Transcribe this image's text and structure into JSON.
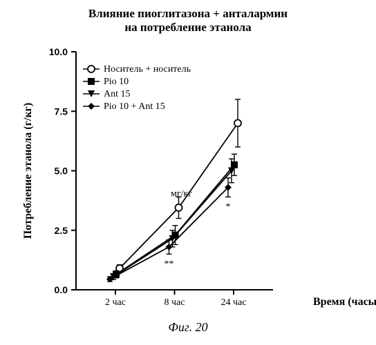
{
  "title_line1": "Влияние пиоглитазона + анталармин",
  "title_line2": "на потребление этанола",
  "ylabel": "Потребление этанола (г/кг)",
  "xlabel": "Время (часы)",
  "unit_label": "мг/кг",
  "fig_caption": "Фиг. 20",
  "chart": {
    "type": "line",
    "background_color": "#ffffff",
    "axis_color": "#000000",
    "line_width": 1.8,
    "ylim": [
      0,
      10
    ],
    "yticks": [
      0.0,
      2.5,
      5.0,
      7.5,
      10.0
    ],
    "ytick_labels": [
      "0.0",
      "2.5",
      "5.0",
      "7.5",
      "10.0"
    ],
    "xticks": [
      2,
      8,
      24
    ],
    "xtick_labels": [
      "2 час",
      "8 час",
      "24 час"
    ],
    "x_positions": [
      0,
      1,
      2
    ],
    "legend": {
      "items": [
        {
          "label": "Носитель + носитель",
          "marker": "circle-open",
          "color": "#000000"
        },
        {
          "label": "Pio 10",
          "marker": "square-filled",
          "color": "#000000"
        },
        {
          "label": "Ant 15",
          "marker": "triangle-down-filled",
          "color": "#000000"
        },
        {
          "label": "Pio 10 + Ant 15",
          "marker": "diamond-filled",
          "color": "#000000"
        }
      ]
    },
    "series": [
      {
        "name": "Носитель + носитель",
        "marker": "circle-open",
        "color": "#000000",
        "values": [
          0.9,
          3.45,
          7.0
        ],
        "err": [
          0.15,
          0.45,
          1.0
        ]
      },
      {
        "name": "Pio 10",
        "marker": "square-filled",
        "color": "#000000",
        "values": [
          0.65,
          2.3,
          5.25
        ],
        "err": [
          0.15,
          0.4,
          0.45
        ]
      },
      {
        "name": "Ant 15",
        "marker": "triangle-down-filled",
        "color": "#000000",
        "values": [
          0.55,
          2.15,
          5.0
        ],
        "err": [
          0.12,
          0.35,
          0.5
        ]
      },
      {
        "name": "Pio 10 + Ant 15",
        "marker": "diamond-filled",
        "color": "#000000",
        "values": [
          0.45,
          1.8,
          4.3
        ],
        "err": [
          0.1,
          0.3,
          0.4
        ]
      }
    ],
    "significance": [
      {
        "xi": 1,
        "below_series": 3,
        "text": "**",
        "dy": 18
      },
      {
        "xi": 2,
        "below_series": 3,
        "text": "*",
        "dy": 18
      }
    ]
  },
  "title_fontsize": 17,
  "axis_label_fontsize": 16
}
